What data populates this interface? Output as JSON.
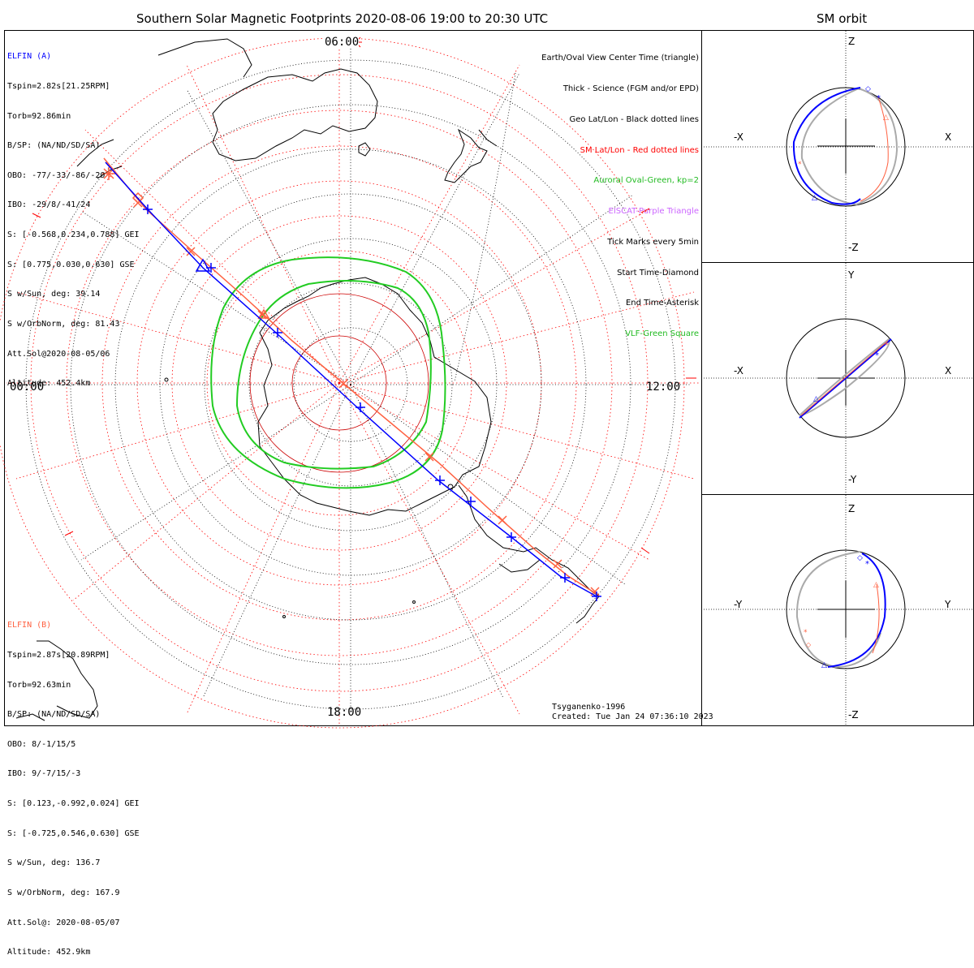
{
  "title": "Southern Solar Magnetic Footprints 2020-08-06 19:00 to 20:30 UTC",
  "orbit_title": "SM orbit",
  "time_labels": {
    "top": "06:00",
    "left": "00:00",
    "right": "12:00",
    "bottom": "18:00"
  },
  "elfin_a": {
    "name": "ELFIN (A)",
    "color": "#0000ff",
    "lines": [
      "Tspin=2.82s[21.25RPM]",
      "Torb=92.86min",
      "B/SP: (NA/ND/SD/SA)",
      "OBO: -77/-33/-86/-20",
      "IBO: -29/8/-41/24",
      "S: [-0.568,0.234,0.788] GEI",
      "S: [0.775,0.030,0.630] GSE",
      "S w/Sun, deg: 39.14",
      "S w/OrbNorm, deg: 81.43",
      "Att.Sol@2020-08-05/06",
      "Altitude: 452.4km"
    ]
  },
  "elfin_b": {
    "name": "ELFIN (B)",
    "color": "#ff6040",
    "lines": [
      "Tspin=2.87s[20.89RPM]",
      "Torb=92.63min",
      "B/SP: (NA/ND/SD/SA)",
      "OBO: 8/-1/15/5",
      "IBO: 9/-7/15/-3",
      "S: [0.123,-0.992,0.024] GEI",
      "S: [-0.725,0.546,0.630] GSE",
      "S w/Sun, deg: 136.7",
      "S w/OrbNorm, deg: 167.9",
      "Att.Sol@: 2020-08-05/07",
      "Altitude: 452.9km"
    ]
  },
  "legend": [
    {
      "text": "Earth/Oval View Center Time (triangle)",
      "color": "#000000"
    },
    {
      "text": "Thick - Science (FGM and/or EPD)",
      "color": "#000000"
    },
    {
      "text": "Geo Lat/Lon - Black dotted lines",
      "color": "#000000"
    },
    {
      "text": "SM Lat/Lon - Red dotted lines",
      "color": "#ff0000"
    },
    {
      "text": "Auroral Oval-Green, kp=2",
      "color": "#22bb22"
    },
    {
      "text": "EISCAT-Purple Triangle",
      "color": "#cc66ff"
    },
    {
      "text": "Tick Marks every 5min",
      "color": "#000000"
    },
    {
      "text": "Start Time-Diamond",
      "color": "#000000"
    },
    {
      "text": "End Time-Asterisk",
      "color": "#000000"
    },
    {
      "text": "VLF-Green Square",
      "color": "#22bb22"
    }
  ],
  "footer": {
    "model": "Tsyganenko-1996",
    "created": "Created: Tue Jan 24 07:36:10 2023"
  },
  "orbit_panels": [
    {
      "top": "Z",
      "bottom": "-Z",
      "left": "-X",
      "right": "X"
    },
    {
      "top": "Y",
      "bottom": "-Y",
      "left": "-X",
      "right": "X"
    },
    {
      "top": "Z",
      "bottom": "-Z",
      "left": "-Y",
      "right": "Y"
    }
  ],
  "colors": {
    "elfin_a": "#0000ff",
    "elfin_b": "#ff6040",
    "oval": "#22cc22",
    "sm_grid": "#ff0000",
    "geo_grid": "#000000",
    "orbit_gray": "#aaaaaa"
  }
}
